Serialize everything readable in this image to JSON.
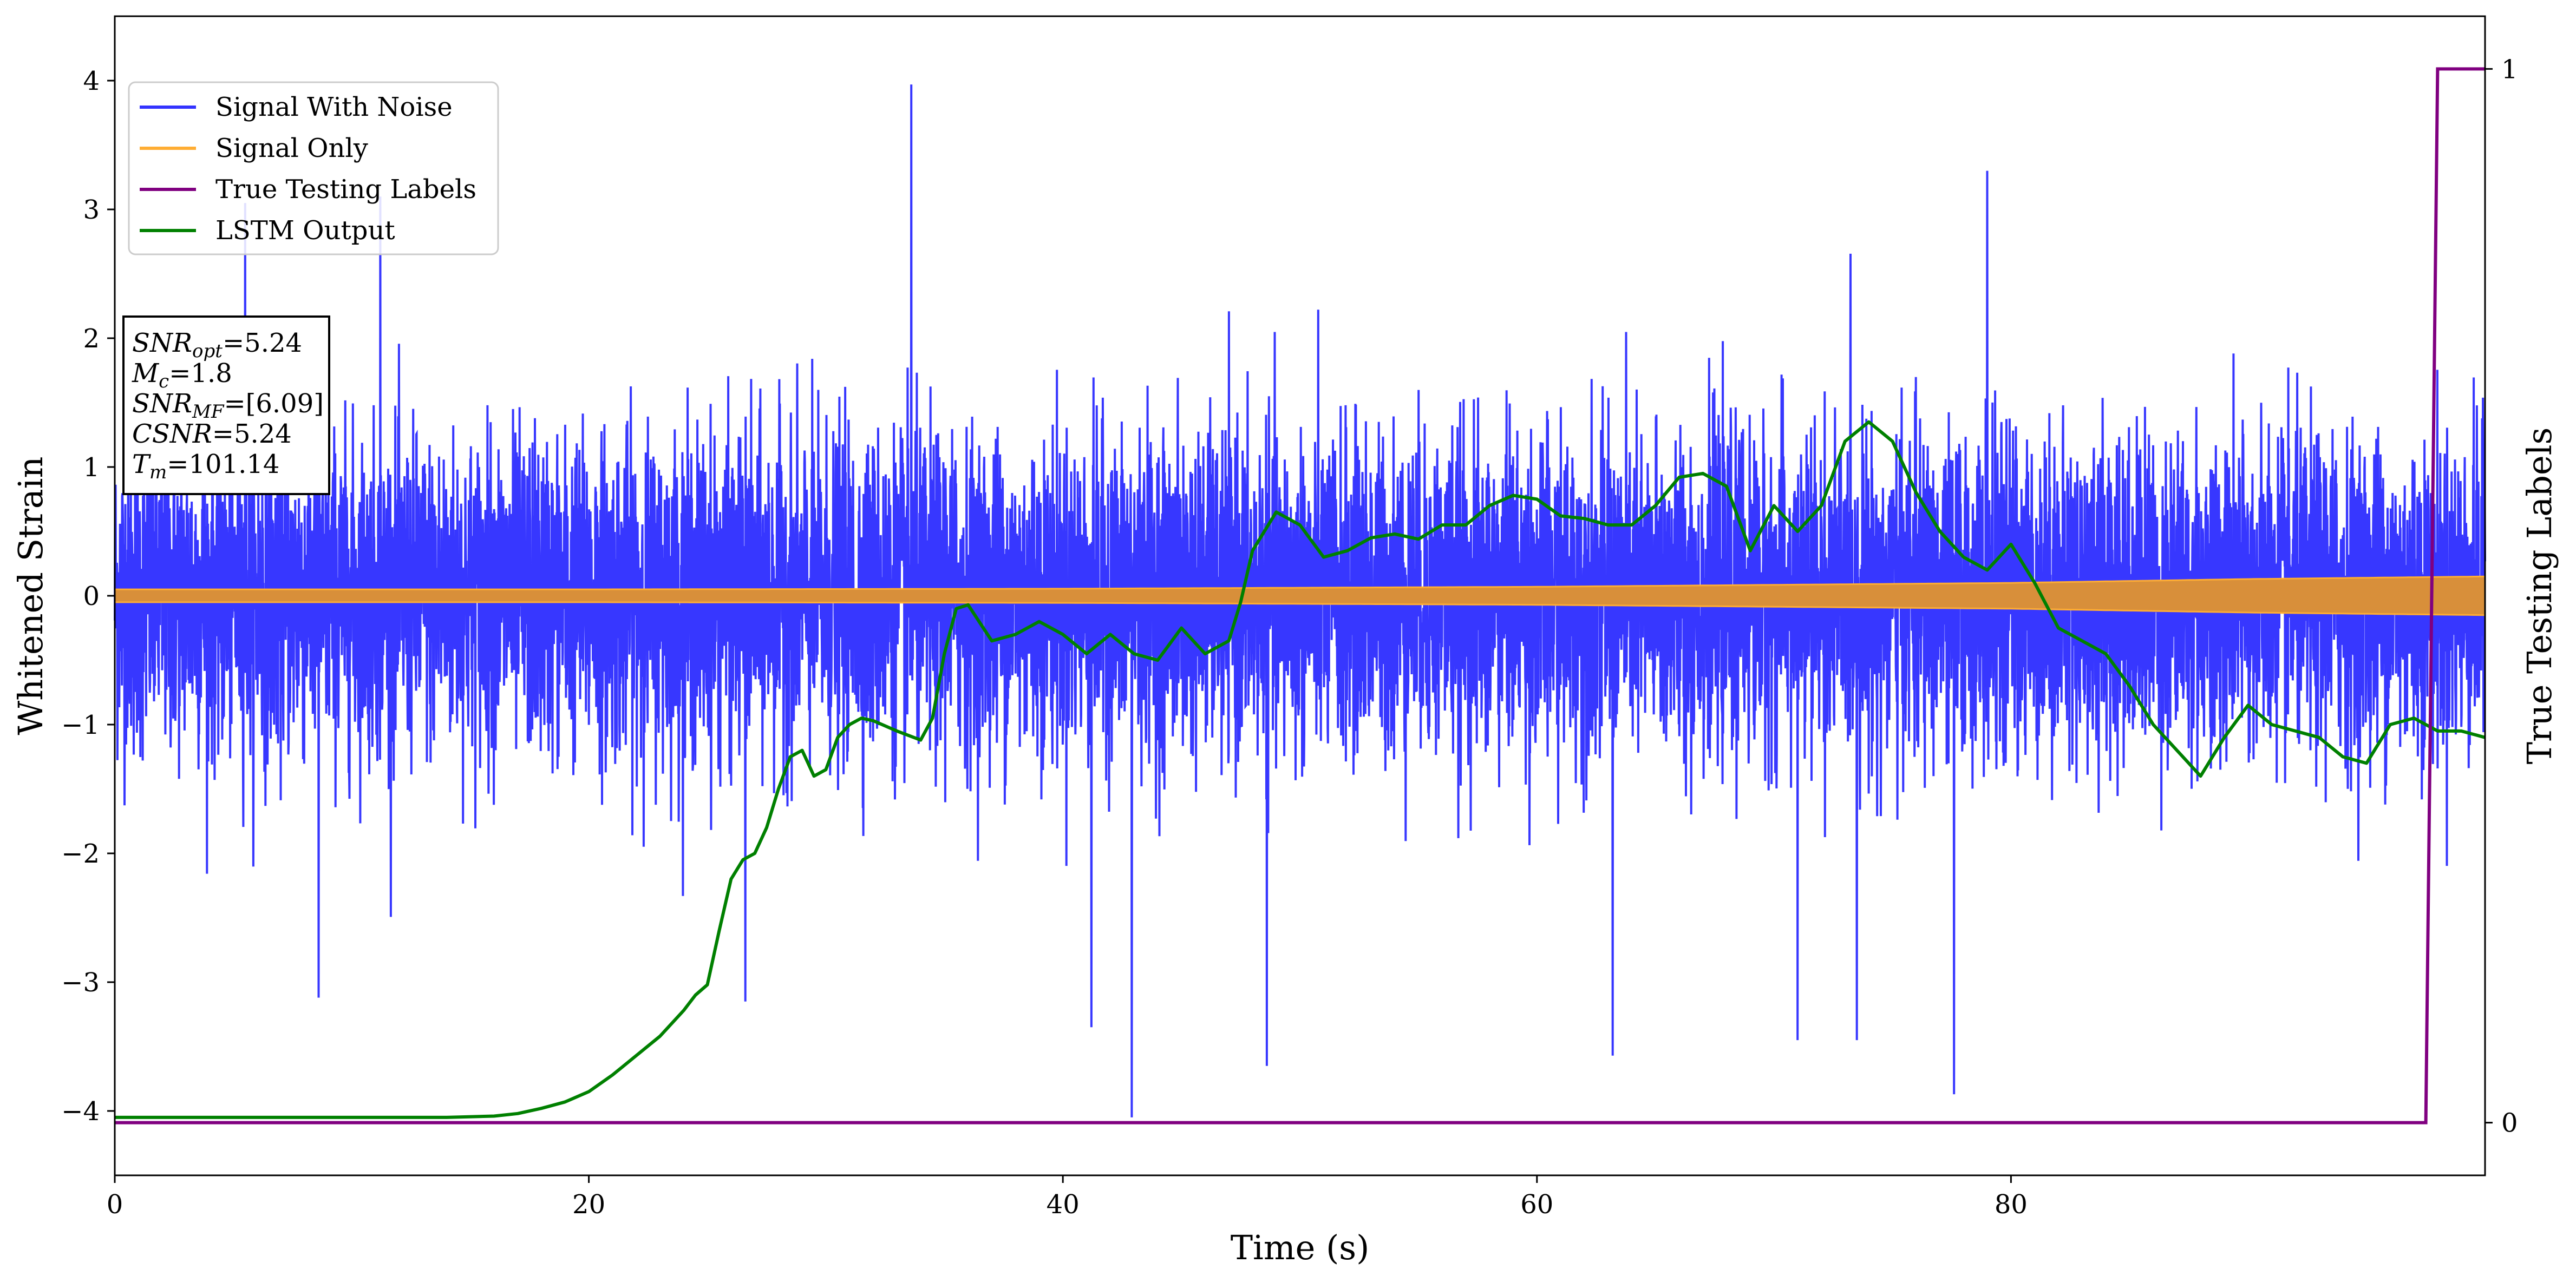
{
  "chart_data": {
    "type": "line",
    "title": "",
    "xlabel": "Time (s)",
    "ylabel": "Whitened Strain",
    "y2label": "True Testing Labels",
    "xlim": [
      0,
      100
    ],
    "ylim": [
      -4.5,
      4.5
    ],
    "y2lim": [
      -0.05,
      1.05
    ],
    "xticks": [
      0,
      20,
      40,
      60,
      80
    ],
    "xtick_labels": [
      "0",
      "20",
      "40",
      "60",
      "80"
    ],
    "yticks": [
      -4,
      -3,
      -2,
      -1,
      0,
      1,
      2,
      3,
      4
    ],
    "ytick_labels": [
      "−4",
      "−3",
      "−2",
      "−1",
      "0",
      "1",
      "2",
      "3",
      "4"
    ],
    "y2ticks": [
      0,
      1
    ],
    "y2tick_labels": [
      "0",
      "1"
    ],
    "grid": false,
    "legend": {
      "placement": "top-left",
      "entries": [
        {
          "label": "Signal With Noise",
          "color": "#3333ff"
        },
        {
          "label": "Signal Only",
          "color": "#ffad33"
        },
        {
          "label": "True Testing Labels",
          "color": "#800080"
        },
        {
          "label": "LSTM Output",
          "color": "#008000"
        }
      ]
    },
    "info_box": {
      "placement": "left",
      "lines": [
        {
          "name": "SNR",
          "sub": "opt",
          "value": "=5.24"
        },
        {
          "name": "M",
          "sub": "c",
          "value": "=1.8"
        },
        {
          "name": "SNR",
          "sub": "MF",
          "value": "=[6.09]"
        },
        {
          "name": "CSNR",
          "sub": "",
          "value": "=5.24"
        },
        {
          "name": "T",
          "sub": "m",
          "value": "=101.14"
        }
      ]
    },
    "series": [
      {
        "name": "Signal With Noise",
        "color": "#3333ff",
        "axis": "left",
        "description": "whitened noisy strain, approx. gaussian with std ~0.6, extremes near -4.05 and 3.97",
        "notable_peaks": [
          {
            "x": 33.6,
            "y": 3.97
          },
          {
            "x": 42.9,
            "y": -4.05
          },
          {
            "x": 79.0,
            "y": 3.3
          },
          {
            "x": 48.6,
            "y": -3.65
          },
          {
            "x": 77.6,
            "y": -3.87
          },
          {
            "x": 8.6,
            "y": -3.12
          },
          {
            "x": 26.6,
            "y": -3.15
          },
          {
            "x": 71.0,
            "y": -3.45
          },
          {
            "x": 73.5,
            "y": -3.45
          },
          {
            "x": 63.2,
            "y": -3.57
          },
          {
            "x": 41.2,
            "y": -3.35
          },
          {
            "x": 11.2,
            "y": 3.1
          },
          {
            "x": 5.5,
            "y": 3.05
          }
        ]
      },
      {
        "name": "Signal Only",
        "color": "#ffad33",
        "axis": "left",
        "description": "chirp signal envelope growing over time",
        "envelope_x": [
          0,
          20,
          40,
          60,
          80,
          90,
          100
        ],
        "envelope_amp": [
          0.05,
          0.05,
          0.055,
          0.07,
          0.1,
          0.13,
          0.15
        ]
      },
      {
        "name": "True Testing Labels",
        "color": "#800080",
        "axis": "right",
        "x": [
          0,
          97.5,
          98.0,
          100
        ],
        "y": [
          0,
          0,
          1,
          1
        ]
      },
      {
        "name": "LSTM Output",
        "color": "#008000",
        "axis": "left",
        "x": [
          0,
          5,
          10,
          14,
          16,
          17,
          18,
          19,
          20,
          21,
          22,
          23,
          24,
          24.5,
          25,
          25.5,
          26,
          26.5,
          27,
          27.5,
          28,
          28.5,
          29,
          29.5,
          30,
          30.5,
          31,
          31.5,
          32,
          33,
          34,
          34.5,
          35,
          35.5,
          36,
          37,
          38,
          39,
          40,
          41,
          42,
          43,
          44,
          45,
          46,
          47,
          47.5,
          48,
          49,
          50,
          51,
          52,
          53,
          54,
          55,
          56,
          57,
          58,
          59,
          60,
          61,
          62,
          63,
          64,
          65,
          66,
          67,
          68,
          69,
          70,
          71,
          72,
          73,
          74,
          75,
          76,
          77,
          78,
          79,
          80,
          81,
          82,
          83,
          84,
          85,
          86,
          87,
          88,
          89,
          90,
          91,
          92,
          93,
          94,
          95,
          96,
          97,
          98,
          99,
          100
        ],
        "y": [
          -4.05,
          -4.05,
          -4.05,
          -4.05,
          -4.04,
          -4.02,
          -3.98,
          -3.93,
          -3.85,
          -3.72,
          -3.57,
          -3.42,
          -3.22,
          -3.1,
          -3.02,
          -2.6,
          -2.2,
          -2.05,
          -2.0,
          -1.8,
          -1.5,
          -1.25,
          -1.2,
          -1.4,
          -1.35,
          -1.1,
          -1.0,
          -0.95,
          -0.97,
          -1.05,
          -1.12,
          -0.95,
          -0.45,
          -0.1,
          -0.07,
          -0.35,
          -0.3,
          -0.2,
          -0.3,
          -0.45,
          -0.3,
          -0.45,
          -0.5,
          -0.25,
          -0.45,
          -0.35,
          -0.05,
          0.35,
          0.65,
          0.55,
          0.3,
          0.35,
          0.45,
          0.48,
          0.44,
          0.55,
          0.55,
          0.7,
          0.78,
          0.75,
          0.62,
          0.6,
          0.55,
          0.55,
          0.7,
          0.92,
          0.95,
          0.85,
          0.35,
          0.7,
          0.5,
          0.7,
          1.2,
          1.35,
          1.2,
          0.8,
          0.5,
          0.3,
          0.2,
          0.4,
          0.1,
          -0.25,
          -0.35,
          -0.45,
          -0.7,
          -1.0,
          -1.2,
          -1.4,
          -1.1,
          -0.85,
          -1.0,
          -1.05,
          -1.1,
          -1.25,
          -1.3,
          -1.0,
          -0.95,
          -1.05,
          -1.05,
          -1.1
        ]
      }
    ]
  }
}
